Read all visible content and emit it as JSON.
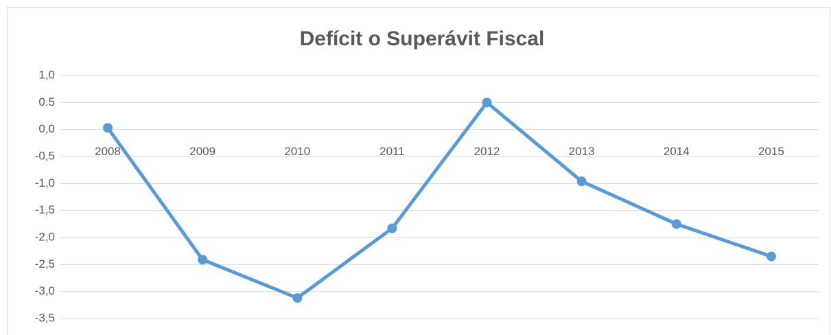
{
  "chart_data": {
    "type": "line",
    "title": "Defícit o Superávit Fiscal",
    "categories": [
      "2008",
      "2009",
      "2010",
      "2011",
      "2012",
      "2013",
      "2014",
      "2015"
    ],
    "series": [
      {
        "name": "Defícit o Superávit Fiscal",
        "color": "#5b9bd5",
        "values": [
          0.03,
          -2.41,
          -3.12,
          -1.83,
          0.5,
          -0.96,
          -1.75,
          -2.35
        ]
      }
    ],
    "ylim": [
      -3.5,
      1.0
    ],
    "yticks": [
      {
        "value": 1.0,
        "label": "1,0"
      },
      0.5,
      {
        "value": 0.0,
        "label": "0,0"
      },
      {
        "value": -0.5,
        "label": "-0,5"
      },
      {
        "value": -1.0,
        "label": "-1,0"
      },
      {
        "value": -1.5,
        "label": "-1,5"
      },
      {
        "value": -2.0,
        "label": "-2,0"
      },
      {
        "value": -2.5,
        "label": "-2,5"
      },
      {
        "value": -3.0,
        "label": "-3,0"
      },
      {
        "value": -3.5,
        "label": "-3,5"
      }
    ],
    "grid": true
  }
}
